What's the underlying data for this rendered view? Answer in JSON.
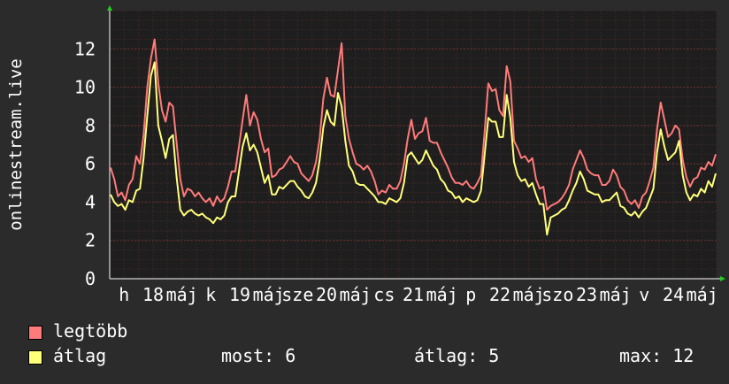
{
  "chart_data": {
    "type": "line",
    "ylabel": "onlinestream.live",
    "ylim": [
      0,
      14
    ],
    "yticks": [
      0,
      2,
      4,
      6,
      8,
      10,
      12
    ],
    "xtick_labels": [
      "h",
      "18",
      "máj",
      "k",
      "19",
      "máj",
      "sze",
      "20",
      "máj",
      "cs",
      "21",
      "máj",
      "p",
      "22",
      "máj",
      "szo",
      "23",
      "máj",
      "v",
      "24",
      "máj"
    ],
    "grid": true,
    "series": [
      {
        "name": "legtöbb",
        "color": "#ff7a7a",
        "values": [
          5.8,
          5.2,
          4.3,
          4.5,
          4.1,
          4.9,
          5.2,
          6.4,
          6.0,
          7.5,
          10.0,
          11.5,
          12.5,
          10.2,
          8.8,
          8.2,
          9.2,
          9.0,
          7.1,
          5.2,
          4.3,
          4.7,
          4.6,
          4.3,
          4.5,
          4.2,
          4.0,
          4.2,
          3.8,
          4.3,
          4.0,
          4.2,
          4.8,
          5.6,
          5.6,
          6.9,
          8.3,
          9.6,
          8.0,
          8.7,
          8.3,
          7.3,
          6.6,
          6.8,
          5.3,
          5.4,
          5.7,
          5.8,
          6.1,
          6.4,
          6.1,
          6.0,
          5.5,
          5.3,
          5.1,
          5.4,
          6.1,
          7.3,
          9.4,
          10.5,
          9.6,
          9.5,
          10.9,
          12.3,
          8.5,
          7.3,
          6.6,
          6.0,
          5.9,
          5.7,
          5.9,
          5.6,
          5.1,
          4.4,
          4.6,
          4.5,
          4.9,
          4.7,
          4.7,
          5.1,
          6.0,
          7.3,
          8.3,
          7.3,
          7.6,
          7.7,
          8.4,
          7.2,
          7.1,
          7.1,
          6.6,
          6.2,
          5.8,
          5.3,
          5.0,
          5.0,
          4.9,
          5.1,
          4.8,
          4.7,
          5.0,
          5.4,
          7.7,
          10.2,
          9.8,
          9.9,
          8.8,
          8.5,
          11.1,
          10.3,
          7.2,
          6.8,
          6.3,
          6.4,
          6.1,
          6.3,
          5.2,
          4.7,
          4.8,
          3.6,
          3.8,
          3.9,
          4.0,
          4.2,
          4.5,
          4.9,
          5.7,
          6.2,
          6.7,
          6.3,
          5.7,
          5.5,
          5.4,
          5.4,
          4.9,
          4.9,
          5.1,
          5.7,
          5.4,
          4.8,
          4.6,
          4.1,
          3.9,
          4.1,
          3.7,
          4.3,
          4.5,
          5.1,
          5.8,
          7.8,
          9.2,
          8.3,
          7.4,
          7.6,
          8.0,
          7.8,
          6.2,
          5.3,
          4.8,
          5.2,
          5.3,
          5.8,
          5.7,
          6.1,
          5.9,
          6.5
        ]
      },
      {
        "name": "átlag",
        "color": "#ffff7a",
        "values": [
          4.4,
          4.0,
          3.8,
          3.9,
          3.6,
          4.1,
          4.0,
          4.6,
          4.7,
          6.3,
          8.5,
          10.6,
          11.3,
          8.0,
          7.2,
          6.3,
          7.3,
          7.5,
          5.3,
          3.6,
          3.3,
          3.5,
          3.6,
          3.4,
          3.3,
          3.4,
          3.2,
          3.1,
          2.9,
          3.2,
          3.1,
          3.3,
          4.0,
          4.3,
          4.3,
          5.6,
          6.9,
          7.6,
          6.7,
          7.0,
          6.6,
          5.8,
          5.0,
          5.4,
          4.4,
          4.4,
          4.8,
          4.7,
          4.9,
          5.1,
          5.1,
          4.8,
          4.6,
          4.3,
          4.2,
          4.5,
          5.0,
          6.2,
          7.9,
          8.8,
          8.2,
          8.0,
          9.7,
          9.0,
          7.2,
          5.9,
          5.6,
          5.0,
          4.9,
          4.9,
          4.7,
          4.5,
          4.3,
          4.0,
          4.0,
          3.9,
          4.2,
          4.1,
          4.0,
          4.2,
          5.0,
          6.4,
          6.6,
          6.3,
          6.0,
          6.2,
          6.7,
          6.3,
          5.9,
          5.7,
          5.2,
          5.0,
          4.6,
          4.5,
          4.2,
          4.3,
          4.0,
          4.2,
          4.1,
          4.0,
          4.1,
          4.6,
          6.5,
          8.4,
          8.2,
          8.2,
          7.4,
          7.4,
          9.6,
          8.4,
          6.1,
          5.4,
          5.1,
          5.2,
          4.8,
          5.0,
          4.4,
          3.9,
          3.9,
          2.3,
          3.2,
          3.3,
          3.4,
          3.6,
          3.7,
          4.1,
          4.6,
          5.0,
          5.6,
          5.2,
          4.6,
          4.5,
          4.4,
          4.4,
          4.0,
          4.1,
          4.1,
          4.3,
          4.5,
          3.8,
          3.7,
          3.4,
          3.3,
          3.5,
          3.2,
          3.5,
          3.7,
          4.2,
          4.7,
          6.6,
          7.8,
          6.9,
          6.2,
          6.4,
          6.6,
          7.2,
          5.4,
          4.5,
          4.1,
          4.4,
          4.3,
          4.7,
          4.5,
          5.1,
          4.8,
          5.5
        ]
      }
    ]
  },
  "legend": {
    "max_label": "legtöbb",
    "avg_label": "átlag",
    "max_color": "#ff7a7a",
    "avg_color": "#ffff7a"
  },
  "stats": {
    "now": "most: 6",
    "avg": "átlag: 5",
    "max": "max: 12"
  }
}
